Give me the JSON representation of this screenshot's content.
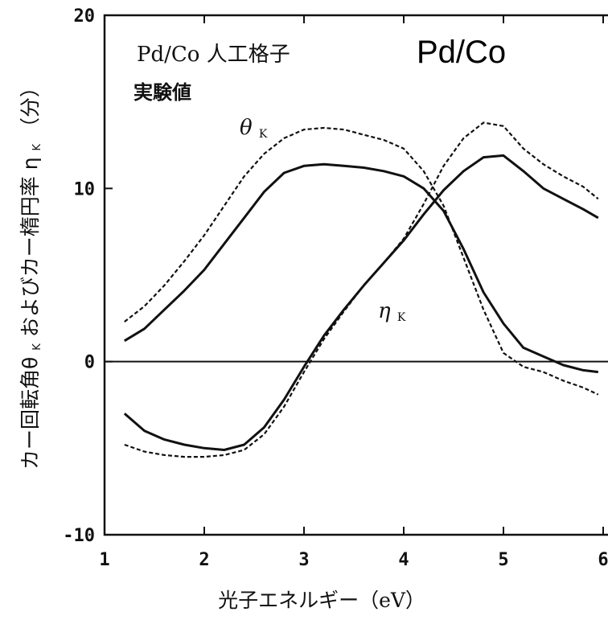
{
  "chart_data": {
    "type": "line",
    "title": "Pd/Co 人工格子",
    "subtitle": "実験値",
    "overlay_label": "Pd/Co",
    "xlabel": "光子エネルギー（eV）",
    "ylabel": "カー回転角θ",
    "ylabel_sub1": "K",
    "ylabel_mid": " およびカー楕円率 η",
    "ylabel_sub2": "K",
    "ylabel_unit": "（分）",
    "xlim": [
      1,
      6
    ],
    "ylim": [
      -10,
      20
    ],
    "xticks": [
      1,
      2,
      3,
      4,
      5,
      6
    ],
    "xtick_labels": [
      "1",
      "2",
      "3",
      "4",
      "5",
      "6"
    ],
    "yticks": [
      -10,
      0,
      10,
      20
    ],
    "ytick_labels": [
      "-10",
      "0",
      "10",
      "20"
    ],
    "grid": false,
    "zero_line": true,
    "series": [
      {
        "name": "θK",
        "name_main": "θ",
        "name_sub": "K",
        "part": "solid",
        "style": "solid",
        "x": [
          1.2,
          1.4,
          1.6,
          1.8,
          2.0,
          2.2,
          2.4,
          2.6,
          2.8,
          3.0,
          3.2,
          3.4,
          3.6,
          3.8,
          4.0,
          4.2,
          4.4,
          4.6,
          4.8,
          5.0,
          5.2,
          5.4,
          5.6,
          5.8,
          5.95
        ],
        "y": [
          1.2,
          1.9,
          3.0,
          4.1,
          5.3,
          6.8,
          8.3,
          9.8,
          10.9,
          11.3,
          11.4,
          11.3,
          11.2,
          11.0,
          10.7,
          10.0,
          8.7,
          6.5,
          4.0,
          2.2,
          0.8,
          0.3,
          -0.2,
          -0.5,
          -0.6
        ]
      },
      {
        "name": "θK",
        "part": "dashed",
        "style": "dashed",
        "x": [
          1.2,
          1.4,
          1.6,
          1.8,
          2.0,
          2.2,
          2.4,
          2.6,
          2.8,
          3.0,
          3.2,
          3.4,
          3.6,
          3.8,
          4.0,
          4.2,
          4.4,
          4.6,
          4.8,
          5.0,
          5.2,
          5.4,
          5.6,
          5.8,
          5.95
        ],
        "y": [
          2.3,
          3.2,
          4.4,
          5.8,
          7.3,
          9.0,
          10.7,
          12.0,
          12.9,
          13.4,
          13.5,
          13.4,
          13.1,
          12.8,
          12.3,
          11.0,
          9.0,
          6.0,
          3.0,
          0.5,
          -0.3,
          -0.6,
          -1.1,
          -1.5,
          -1.9
        ]
      },
      {
        "name": "ηK",
        "name_main": "η",
        "name_sub": "K",
        "part": "solid",
        "style": "solid",
        "x": [
          1.2,
          1.4,
          1.6,
          1.8,
          2.0,
          2.2,
          2.4,
          2.6,
          2.8,
          3.0,
          3.2,
          3.4,
          3.6,
          3.8,
          4.0,
          4.2,
          4.4,
          4.6,
          4.8,
          5.0,
          5.2,
          5.4,
          5.6,
          5.8,
          5.95
        ],
        "y": [
          -3.0,
          -4.0,
          -4.5,
          -4.8,
          -5.0,
          -5.1,
          -4.8,
          -3.8,
          -2.2,
          -0.3,
          1.5,
          3.0,
          4.4,
          5.7,
          7.0,
          8.5,
          9.9,
          11.0,
          11.8,
          11.9,
          11.0,
          10.0,
          9.4,
          8.8,
          8.3
        ]
      },
      {
        "name": "ηK",
        "part": "dashed",
        "style": "dashed",
        "x": [
          1.2,
          1.4,
          1.6,
          1.8,
          2.0,
          2.2,
          2.4,
          2.6,
          2.8,
          3.0,
          3.2,
          3.4,
          3.6,
          3.8,
          4.0,
          4.2,
          4.4,
          4.6,
          4.8,
          5.0,
          5.2,
          5.4,
          5.6,
          5.8,
          5.95
        ],
        "y": [
          -4.8,
          -5.2,
          -5.4,
          -5.5,
          -5.5,
          -5.4,
          -5.1,
          -4.2,
          -2.6,
          -0.6,
          1.3,
          2.9,
          4.4,
          5.7,
          7.1,
          9.1,
          11.3,
          12.9,
          13.8,
          13.6,
          12.3,
          11.4,
          10.7,
          10.1,
          9.4
        ]
      }
    ]
  }
}
